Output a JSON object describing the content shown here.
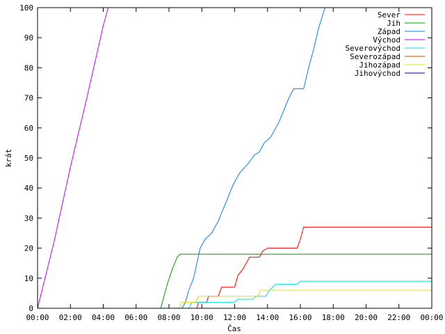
{
  "chart_data": {
    "type": "line",
    "title": "",
    "xlabel": "Čas",
    "ylabel": "krát",
    "xlim": [
      0,
      24
    ],
    "ylim": [
      0,
      100
    ],
    "grid": false,
    "legend_position": "top-right",
    "x_tick_labels": [
      "00:00",
      "02:00",
      "04:00",
      "06:00",
      "08:00",
      "10:00",
      "12:00",
      "14:00",
      "16:00",
      "18:00",
      "20:00",
      "22:00",
      "00:00"
    ],
    "y_tick_labels": [
      "0",
      "10",
      "20",
      "30",
      "40",
      "50",
      "60",
      "70",
      "80",
      "90",
      "100"
    ],
    "series": [
      {
        "name": "Sever",
        "color": "#ff0000",
        "points": [
          [
            0,
            0
          ],
          [
            9.7,
            0
          ],
          [
            9.8,
            2
          ],
          [
            10.3,
            2
          ],
          [
            10.4,
            4
          ],
          [
            11.0,
            4
          ],
          [
            11.2,
            7
          ],
          [
            12.0,
            7
          ],
          [
            12.2,
            11
          ],
          [
            12.5,
            13
          ],
          [
            12.9,
            17
          ],
          [
            13.5,
            17
          ],
          [
            13.7,
            19
          ],
          [
            14.0,
            20
          ],
          [
            15.8,
            20
          ],
          [
            16.0,
            23
          ],
          [
            16.2,
            27
          ],
          [
            24,
            27
          ]
        ]
      },
      {
        "name": "Jih",
        "color": "#00a000",
        "points": [
          [
            0,
            0
          ],
          [
            7.5,
            0
          ],
          [
            7.6,
            2
          ],
          [
            7.9,
            8
          ],
          [
            8.2,
            13
          ],
          [
            8.5,
            17
          ],
          [
            8.7,
            18
          ],
          [
            24,
            18
          ]
        ]
      },
      {
        "name": "Západ",
        "color": "#0080ff",
        "points": [
          [
            0,
            0
          ],
          [
            8.8,
            0
          ],
          [
            9.0,
            2
          ],
          [
            9.2,
            6
          ],
          [
            9.5,
            10
          ],
          [
            9.7,
            15
          ],
          [
            9.9,
            20
          ],
          [
            10.2,
            23
          ],
          [
            10.6,
            25
          ],
          [
            11.0,
            29
          ],
          [
            11.3,
            33
          ],
          [
            11.6,
            37
          ],
          [
            11.9,
            41
          ],
          [
            12.3,
            45
          ],
          [
            12.8,
            48
          ],
          [
            13.2,
            51
          ],
          [
            13.5,
            52
          ],
          [
            13.8,
            55
          ],
          [
            14.2,
            57
          ],
          [
            14.7,
            62
          ],
          [
            15.0,
            66
          ],
          [
            15.3,
            70
          ],
          [
            15.6,
            73
          ],
          [
            16.2,
            73
          ],
          [
            16.5,
            80
          ],
          [
            16.8,
            86
          ],
          [
            17.1,
            93
          ],
          [
            17.5,
            100
          ]
        ]
      },
      {
        "name": "Východ",
        "color": "#c000ff",
        "points": [
          [
            0,
            0
          ],
          [
            1.0,
            22
          ],
          [
            2.0,
            47
          ],
          [
            3.0,
            70
          ],
          [
            4.0,
            94
          ],
          [
            4.3,
            100
          ]
        ]
      },
      {
        "name": "Severovýchod",
        "color": "#00e0e0",
        "points": [
          [
            0,
            0
          ],
          [
            9.2,
            0
          ],
          [
            9.4,
            2
          ],
          [
            12.0,
            2
          ],
          [
            12.2,
            3
          ],
          [
            13.1,
            3
          ],
          [
            13.3,
            4
          ],
          [
            13.9,
            4
          ],
          [
            14.1,
            6
          ],
          [
            14.3,
            7
          ],
          [
            14.5,
            8
          ],
          [
            15.8,
            8
          ],
          [
            16.0,
            9
          ],
          [
            24,
            9
          ]
        ]
      },
      {
        "name": "Severozápad",
        "color": "#c05000",
        "points": []
      },
      {
        "name": "Jihozápad",
        "color": "#e0e000",
        "points": [
          [
            0,
            0
          ],
          [
            8.6,
            0
          ],
          [
            8.8,
            2
          ],
          [
            9.6,
            2
          ],
          [
            9.8,
            4
          ],
          [
            13.4,
            4
          ],
          [
            13.6,
            6
          ],
          [
            24,
            6
          ]
        ]
      },
      {
        "name": "Jihovýchod",
        "color": "#000080",
        "points": []
      }
    ]
  }
}
